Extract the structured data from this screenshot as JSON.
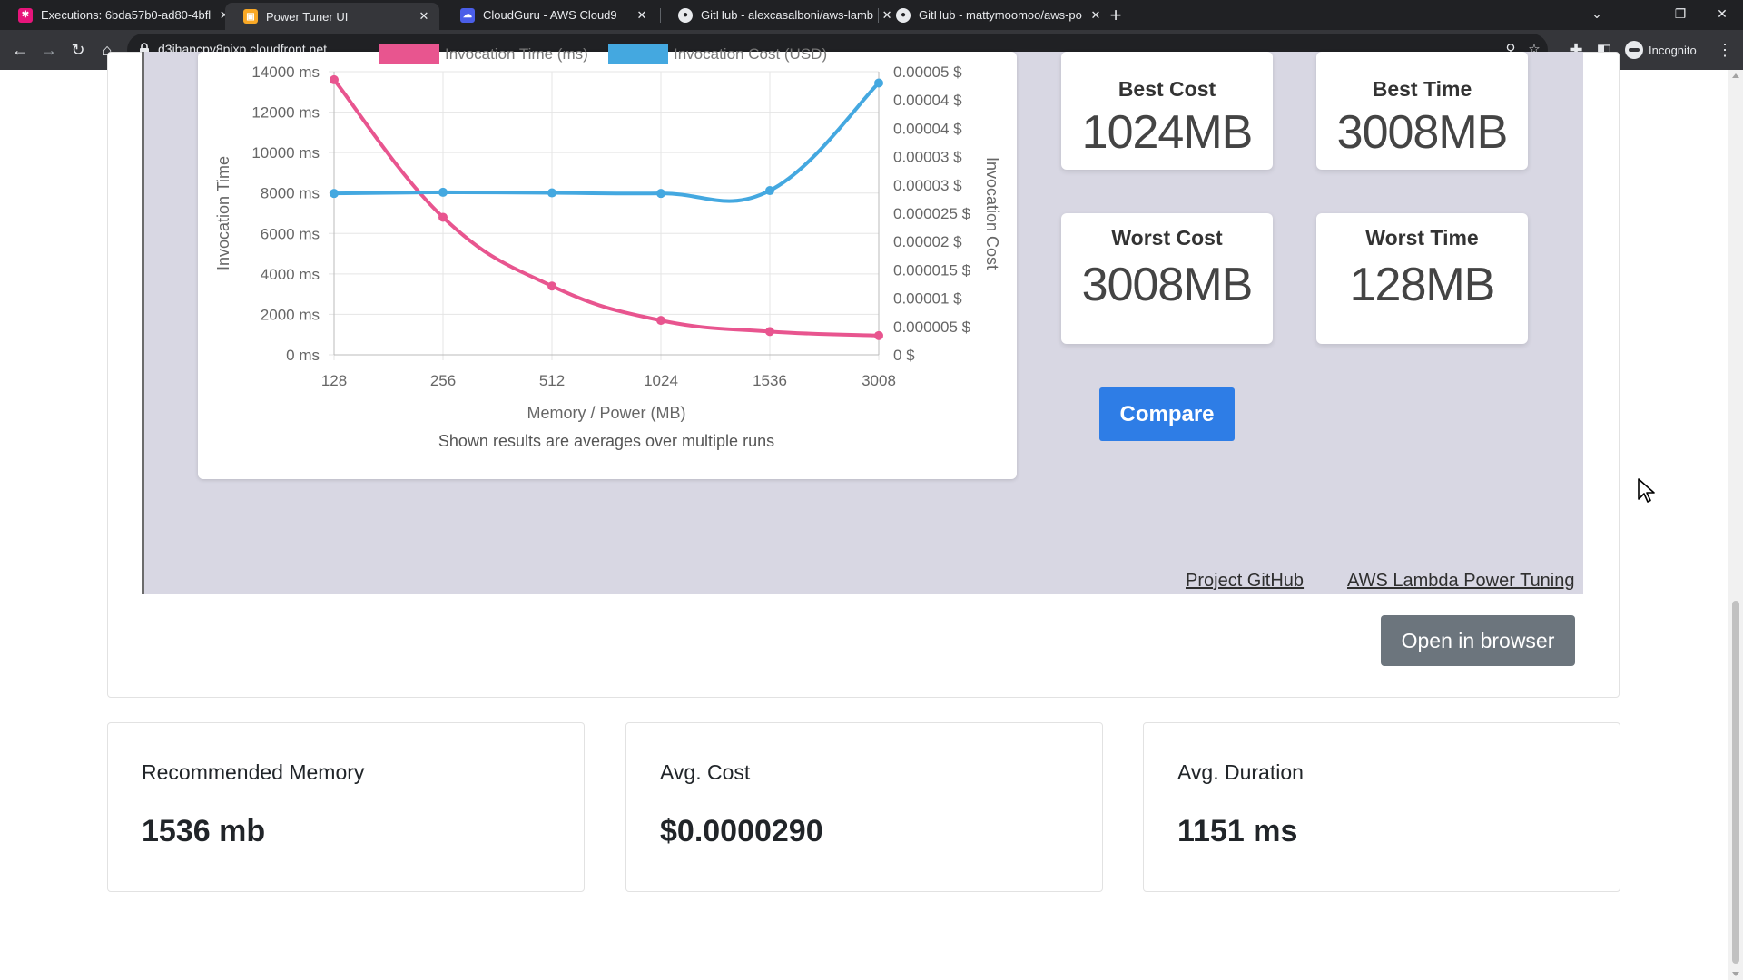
{
  "browser": {
    "tabs": [
      {
        "label": "Executions: 6bda57b0-ad80-4bfl",
        "icon": "step-functions-icon",
        "color": "#e7157b"
      },
      {
        "label": "Power Tuner UI",
        "icon": "aws-package-icon",
        "color": "#f9a825"
      },
      {
        "label": "CloudGuru - AWS Cloud9",
        "icon": "cloud9-icon",
        "color": "#4a5ee8"
      },
      {
        "label": "GitHub - alexcasalboni/aws-lamb",
        "icon": "github-icon",
        "color": "#e8eaed"
      },
      {
        "label": "GitHub - mattymoomoo/aws-po",
        "icon": "github-icon",
        "color": "#e8eaed"
      }
    ],
    "url": "d3jhancpy8pjxp.cloudfront.net",
    "profile_label": "Incognito"
  },
  "chart_data": {
    "type": "line",
    "legend": [
      "Invocation Time (ms)",
      "Invocation Cost (USD)"
    ],
    "x": [
      "128",
      "256",
      "512",
      "1024",
      "1536",
      "3008"
    ],
    "xlabel": "Memory / Power (MB)",
    "ylabel_left": "Invocation Time",
    "ylabel_right": "Invocation Cost",
    "caption": "Shown results are averages over multiple runs",
    "y_left_ticks": [
      "14000 ms",
      "12000 ms",
      "10000 ms",
      "8000 ms",
      "6000 ms",
      "4000 ms",
      "2000 ms",
      "0 ms"
    ],
    "y_right_ticks": [
      "0.00005 $",
      "0.00004 $",
      "0.00004 $",
      "0.00003 $",
      "0.00003 $",
      "0.000025 $",
      "0.00002 $",
      "0.000015 $",
      "0.00001 $",
      "0.000005 $",
      "0 $"
    ],
    "y_left_range": [
      0,
      14000
    ],
    "y_right_range": [
      0,
      5e-05
    ],
    "series": [
      {
        "name": "Invocation Time (ms)",
        "color": "#e8558f",
        "axis": "left",
        "values": [
          13600,
          6800,
          3400,
          1700,
          1150,
          950
        ]
      },
      {
        "name": "Invocation Cost (USD)",
        "color": "#44a8e0",
        "axis": "right",
        "values": [
          2.85e-05,
          2.87e-05,
          2.86e-05,
          2.85e-05,
          2.9e-05,
          4.8e-05
        ]
      }
    ]
  },
  "stats": {
    "best_cost": {
      "title": "Best Cost",
      "value": "1024MB"
    },
    "best_time": {
      "title": "Best Time",
      "value": "3008MB"
    },
    "worst_cost": {
      "title": "Worst Cost",
      "value": "3008MB"
    },
    "worst_time": {
      "title": "Worst Time",
      "value": "128MB"
    }
  },
  "compare_label": "Compare",
  "links": {
    "project_github": "Project GitHub",
    "aws_power_tuning": "AWS Lambda Power Tuning"
  },
  "open_in_browser_label": "Open in browser",
  "summary": [
    {
      "label": "Recommended Memory",
      "value": "1536 mb"
    },
    {
      "label": "Avg. Cost",
      "value": "$0.0000290"
    },
    {
      "label": "Avg. Duration",
      "value": "1151 ms"
    }
  ]
}
